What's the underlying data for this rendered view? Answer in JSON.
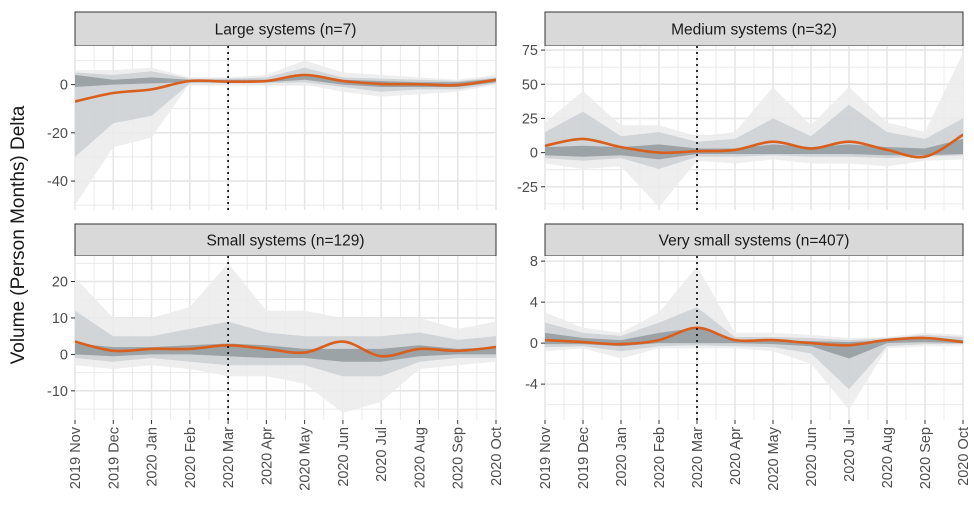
{
  "ylabel": "Volume (Person Months) Delta",
  "xticks": [
    "2019 Nov",
    "2019 Dec",
    "2020 Jan",
    "2020 Feb",
    "2020 Mar",
    "2020 Apr",
    "2020 May",
    "2020 Jun",
    "2020 Jul",
    "2020 Aug",
    "2020 Sep",
    "2020 Oct"
  ],
  "colors": {
    "line": "#D95F1E",
    "band_outer": "#EBEBEB",
    "band_mid": "#C9CED2",
    "band_inner": "#939A9F",
    "strip_bg": "#D9D9D9",
    "grid": "#E6E6E6",
    "marker": "#000000"
  },
  "chart_data": [
    {
      "type": "line",
      "title": "Large systems (n=7)",
      "ylim": [
        -52,
        16
      ],
      "yticks": [
        0,
        -20,
        -40
      ],
      "marker_x": "2020 Mar",
      "series": [
        {
          "values": [
            -7,
            -3.5,
            -2,
            1.5,
            1.2,
            1.5,
            4,
            1.5,
            0.3,
            0.1,
            -0.2,
            2
          ]
        }
      ],
      "bands": {
        "outer": {
          "low": [
            -50,
            -26,
            -22,
            0.5,
            0.5,
            0.5,
            0,
            -3,
            -5,
            -4,
            -3,
            0
          ],
          "high": [
            6,
            6,
            7,
            3,
            3,
            4,
            10,
            5,
            4,
            3,
            2,
            4
          ]
        },
        "mid": {
          "low": [
            -30,
            -16,
            -13,
            0.5,
            0.5,
            0.5,
            1,
            -1,
            -3,
            -2,
            -2,
            0.5
          ],
          "high": [
            5,
            4,
            5.5,
            2.5,
            2.5,
            3,
            7,
            3,
            2.5,
            2,
            1.5,
            3
          ]
        },
        "inner": {
          "low": [
            -1,
            0,
            0.5,
            1,
            1,
            1,
            2,
            0,
            -1,
            -1,
            -1,
            1
          ],
          "high": [
            4,
            2,
            3,
            2,
            2,
            2,
            4,
            2,
            1.5,
            1,
            1,
            2.5
          ]
        }
      }
    },
    {
      "type": "line",
      "title": "Medium systems (n=32)",
      "ylim": [
        -42,
        78
      ],
      "yticks": [
        75,
        50,
        25,
        0,
        -25
      ],
      "marker_x": "2020 Mar",
      "series": [
        {
          "values": [
            5,
            10,
            4,
            0,
            1,
            2,
            8,
            3,
            8,
            2,
            -3,
            13
          ]
        }
      ],
      "bands": {
        "outer": {
          "low": [
            -8,
            -12,
            -10,
            -40,
            -6,
            -8,
            -5,
            -8,
            -8,
            -10,
            -6,
            -5
          ],
          "high": [
            22,
            45,
            20,
            20,
            12,
            15,
            48,
            20,
            48,
            22,
            15,
            73
          ]
        },
        "mid": {
          "low": [
            -4,
            -6,
            -4,
            -12,
            -3,
            -3,
            -2,
            -3,
            -3,
            -4,
            -3,
            -2
          ],
          "high": [
            15,
            30,
            12,
            15,
            8,
            10,
            25,
            12,
            35,
            15,
            10,
            25
          ]
        },
        "inner": {
          "low": [
            -2,
            -3,
            -2,
            -5,
            -1,
            -1,
            -1,
            -1,
            -1,
            -2,
            -2,
            -1
          ],
          "high": [
            4,
            5,
            4,
            6,
            3,
            3,
            6,
            4,
            6,
            4,
            3,
            10
          ]
        }
      }
    },
    {
      "type": "line",
      "title": "Small systems (n=129)",
      "ylim": [
        -18,
        27
      ],
      "yticks": [
        20,
        10,
        0,
        -10
      ],
      "marker_x": "2020 Mar",
      "series": [
        {
          "values": [
            3.5,
            1,
            1.5,
            1.5,
            2.5,
            1.5,
            0.5,
            3.5,
            -0.5,
            1.5,
            1,
            2
          ]
        }
      ],
      "bands": {
        "outer": {
          "low": [
            -3,
            -4,
            -3,
            -4,
            -6,
            -6,
            -8,
            -16,
            -13,
            -4,
            -3,
            -2
          ],
          "high": [
            21,
            10,
            10,
            13,
            25,
            12,
            12,
            10,
            10,
            10,
            7,
            9
          ]
        },
        "mid": {
          "low": [
            -1,
            -2,
            -1,
            -2,
            -3,
            -3,
            -3,
            -6,
            -6,
            -2,
            -1,
            -1
          ],
          "high": [
            12,
            5,
            5,
            7,
            9,
            6,
            5,
            5,
            5,
            6,
            4,
            5
          ]
        },
        "inner": {
          "low": [
            0,
            -0.5,
            0,
            0,
            -0.5,
            -1,
            -1,
            -2,
            -2,
            -0.5,
            0,
            0
          ],
          "high": [
            3,
            2,
            2,
            2.5,
            3,
            2.5,
            1.5,
            1.5,
            1.5,
            2.5,
            1.5,
            2
          ]
        }
      }
    },
    {
      "type": "line",
      "title": "Very small systems (n=407)",
      "ylim": [
        -7.5,
        8.5
      ],
      "yticks": [
        8,
        4,
        0,
        -4
      ],
      "marker_x": "2020 Mar",
      "series": [
        {
          "values": [
            0.3,
            0.1,
            -0.1,
            0.3,
            1.5,
            0.3,
            0.3,
            0,
            -0.2,
            0.3,
            0.5,
            0.1
          ]
        }
      ],
      "bands": {
        "outer": {
          "low": [
            -0.8,
            -0.5,
            -1.5,
            -0.5,
            -0.5,
            -0.5,
            -0.8,
            -2,
            -6.5,
            -0.5,
            -0.3,
            -0.3
          ],
          "high": [
            3,
            1.5,
            1,
            3,
            7.5,
            1,
            1,
            0.8,
            0.5,
            0.6,
            1,
            0.8
          ]
        },
        "mid": {
          "low": [
            -0.4,
            -0.3,
            -0.8,
            -0.3,
            -0.2,
            -0.3,
            -0.4,
            -1,
            -4.5,
            -0.3,
            -0.1,
            -0.1
          ],
          "high": [
            2,
            1,
            0.7,
            2,
            3.5,
            0.6,
            0.6,
            0.5,
            0.3,
            0.5,
            0.8,
            0.6
          ]
        },
        "inner": {
          "low": [
            -0.1,
            -0.1,
            -0.3,
            0,
            0,
            0,
            -0.1,
            -0.3,
            -1.5,
            0,
            0.1,
            0
          ],
          "high": [
            1,
            0.5,
            0.3,
            1,
            1.5,
            0.3,
            0.3,
            0.2,
            0.1,
            0.3,
            0.6,
            0.3
          ]
        }
      }
    }
  ]
}
